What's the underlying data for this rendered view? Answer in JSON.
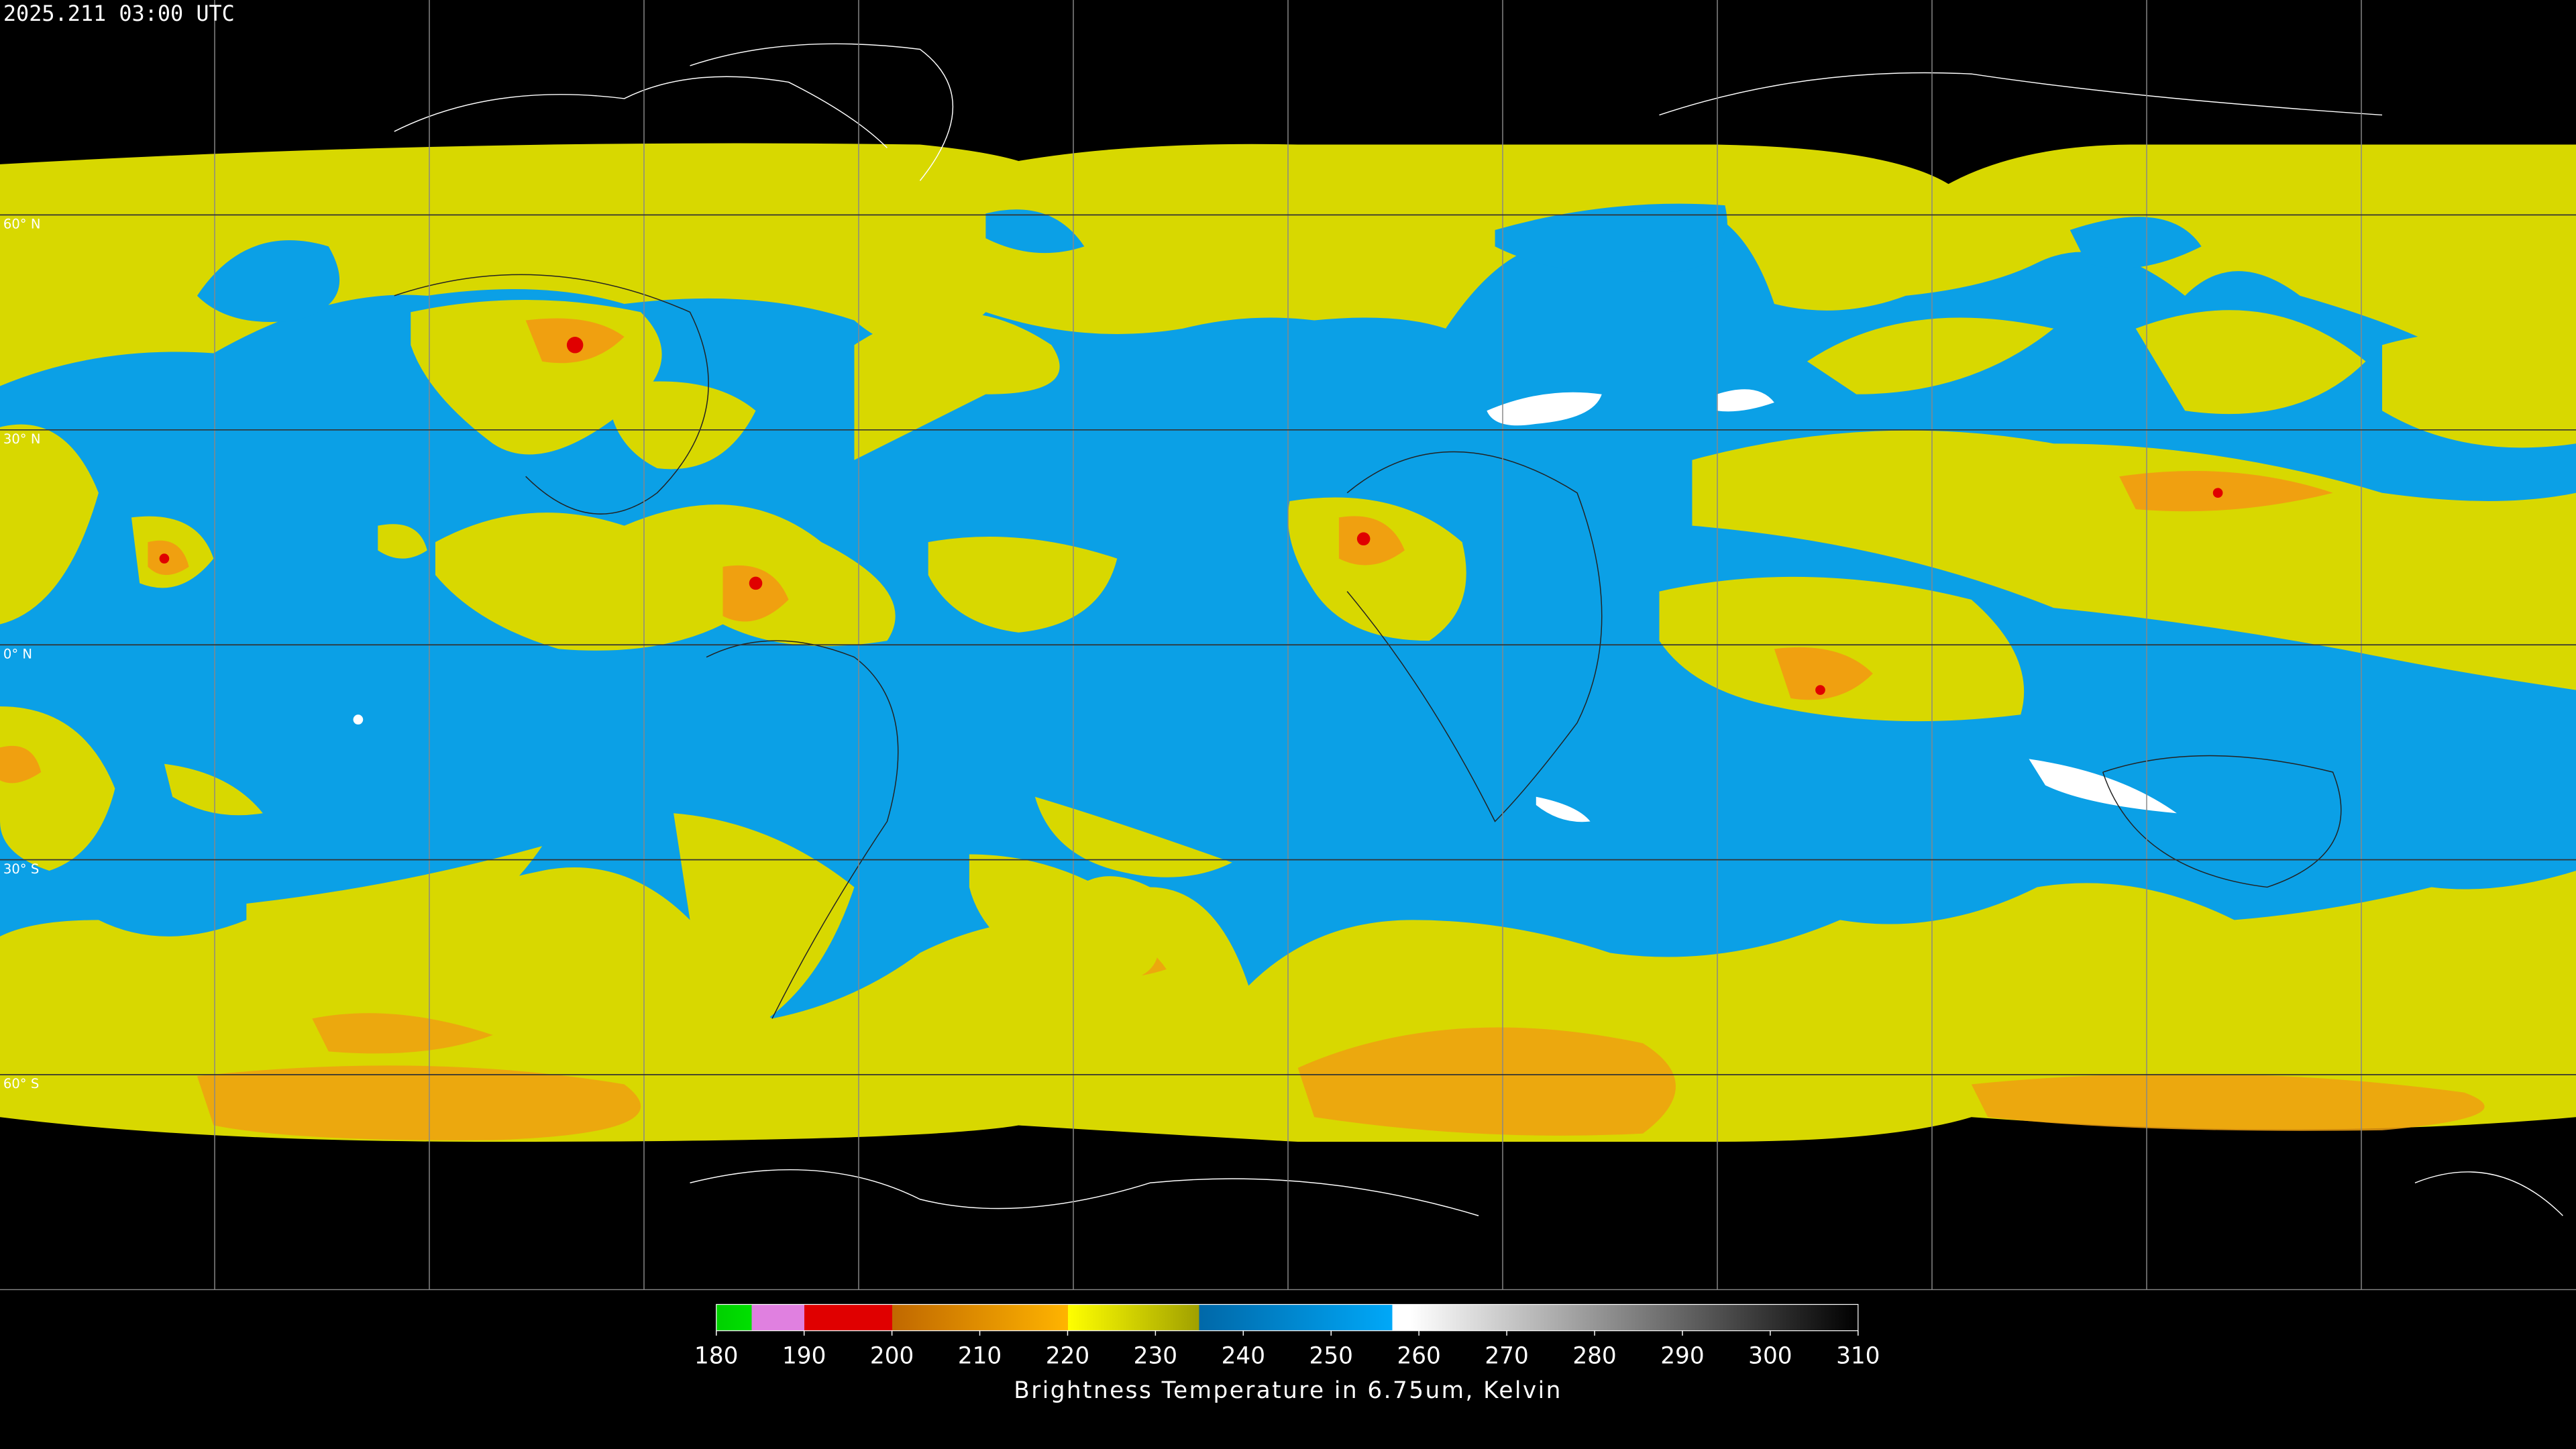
{
  "header": {
    "timestamp": "2025.211 03:00 UTC"
  },
  "map": {
    "latitudes": [
      {
        "value": 60,
        "label": "60° N"
      },
      {
        "value": 30,
        "label": "30° N"
      },
      {
        "value": 0,
        "label": "0° N"
      },
      {
        "value": -30,
        "label": "30° S"
      },
      {
        "value": -60,
        "label": "60° S"
      }
    ]
  },
  "colorbar": {
    "range": [
      180,
      310
    ],
    "ticks": [
      180,
      190,
      200,
      210,
      220,
      230,
      240,
      250,
      260,
      270,
      280,
      290,
      300,
      310
    ],
    "label": "Brightness Temperature in 6.75um, Kelvin"
  }
}
